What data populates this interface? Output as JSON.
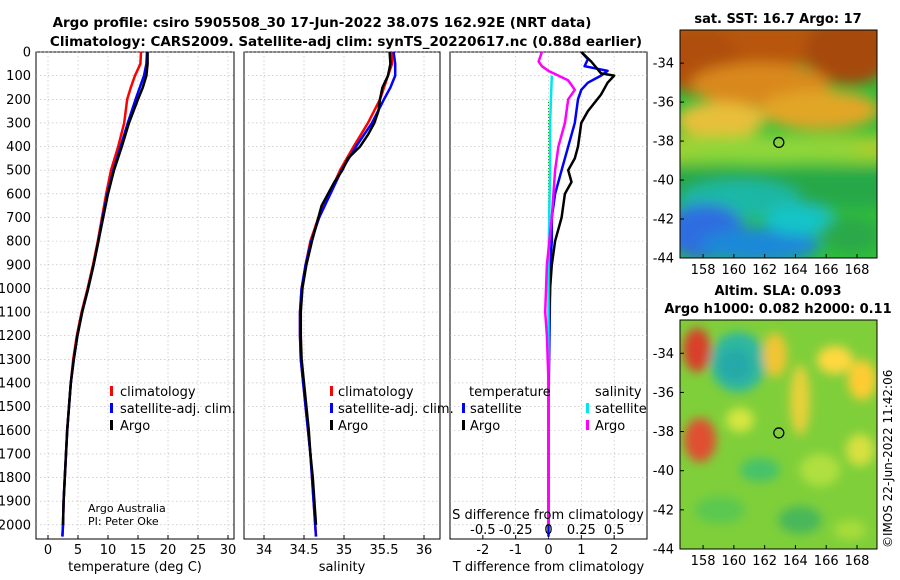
{
  "header": {
    "title_line1": "Argo profile: csiro 5905508_30 17-Jun-2022 38.07S 162.92E (NRT data)",
    "title_line2": "Climatology: CARS2009. Satellite-adj clim: synTS_20220617.nc (0.88d earlier)"
  },
  "credits": {
    "line1": "Argo Australia",
    "line2": "PI: Peter Oke"
  },
  "stamp": "©IMOS 22-Jun-2022 11:42:06",
  "colors": {
    "climatology": "#ff0000",
    "satellite": "#0000ff",
    "argo": "#000000",
    "sal_satellite": "#00e5ee",
    "sal_argo": "#ff00ff"
  },
  "chart_data": [
    {
      "id": "temperature",
      "type": "line",
      "xlabel": "temperature (deg C)",
      "ylabel": "",
      "xlim": [
        -2,
        31
      ],
      "ylim": [
        2060,
        0
      ],
      "xticks": [
        0,
        5,
        10,
        15,
        20,
        25,
        30
      ],
      "yticks": [
        0,
        100,
        200,
        300,
        400,
        500,
        600,
        700,
        800,
        900,
        1000,
        1100,
        1200,
        1300,
        1400,
        1500,
        1600,
        1700,
        1800,
        1900,
        2000
      ],
      "legend": [
        "climatology",
        "satellite-adj. clim.",
        "Argo"
      ],
      "series": [
        {
          "name": "climatology",
          "color": "#ff0000",
          "points": [
            [
              15.5,
              0
            ],
            [
              15.4,
              50
            ],
            [
              14.5,
              100
            ],
            [
              13.8,
              150
            ],
            [
              13.2,
              200
            ],
            [
              12.7,
              300
            ],
            [
              11.7,
              400
            ],
            [
              10.5,
              500
            ],
            [
              9.7,
              600
            ],
            [
              9.0,
              700
            ],
            [
              8.3,
              800
            ],
            [
              7.5,
              900
            ],
            [
              6.6,
              1000
            ],
            [
              5.6,
              1100
            ],
            [
              4.8,
              1200
            ],
            [
              4.2,
              1300
            ],
            [
              3.8,
              1400
            ],
            [
              3.5,
              1500
            ],
            [
              3.2,
              1600
            ],
            [
              3.0,
              1700
            ],
            [
              2.8,
              1800
            ],
            [
              2.6,
              1900
            ],
            [
              2.5,
              2000
            ],
            [
              2.4,
              2050
            ]
          ]
        },
        {
          "name": "satellite-adj. clim.",
          "color": "#0000ff",
          "points": [
            [
              16.5,
              0
            ],
            [
              16.4,
              50
            ],
            [
              16.0,
              100
            ],
            [
              15.3,
              150
            ],
            [
              14.6,
              200
            ],
            [
              13.3,
              300
            ],
            [
              12.1,
              400
            ],
            [
              10.9,
              500
            ],
            [
              9.9,
              600
            ],
            [
              9.1,
              700
            ],
            [
              8.4,
              800
            ],
            [
              7.6,
              900
            ],
            [
              6.7,
              1000
            ],
            [
              5.7,
              1100
            ],
            [
              4.9,
              1200
            ],
            [
              4.3,
              1300
            ],
            [
              3.8,
              1400
            ],
            [
              3.5,
              1500
            ],
            [
              3.2,
              1600
            ],
            [
              3.0,
              1700
            ],
            [
              2.8,
              1800
            ],
            [
              2.6,
              1900
            ],
            [
              2.5,
              2000
            ],
            [
              2.4,
              2050
            ]
          ]
        },
        {
          "name": "Argo",
          "color": "#000000",
          "points": [
            [
              16.6,
              0
            ],
            [
              16.6,
              50
            ],
            [
              16.4,
              100
            ],
            [
              15.8,
              150
            ],
            [
              15.0,
              200
            ],
            [
              13.5,
              300
            ],
            [
              12.3,
              400
            ],
            [
              11.0,
              500
            ],
            [
              10.0,
              600
            ],
            [
              9.2,
              700
            ],
            [
              8.4,
              800
            ],
            [
              7.6,
              900
            ],
            [
              6.7,
              1000
            ],
            [
              5.7,
              1100
            ],
            [
              4.9,
              1200
            ],
            [
              4.3,
              1300
            ],
            [
              3.8,
              1400
            ],
            [
              3.5,
              1500
            ],
            [
              3.2,
              1600
            ],
            [
              3.0,
              1700
            ],
            [
              2.8,
              1800
            ],
            [
              2.6,
              1900
            ],
            [
              2.5,
              2000
            ]
          ]
        }
      ]
    },
    {
      "id": "salinity",
      "type": "line",
      "xlabel": "salinity",
      "ylabel": "",
      "xlim": [
        33.75,
        36.2
      ],
      "ylim": [
        2060,
        0
      ],
      "xticks": [
        34,
        34.5,
        35,
        35.5,
        36
      ],
      "legend": [
        "climatology",
        "satellite-adj. clim.",
        "Argo"
      ],
      "series": [
        {
          "name": "climatology",
          "color": "#ff0000",
          "points": [
            [
              35.6,
              0
            ],
            [
              35.6,
              50
            ],
            [
              35.55,
              100
            ],
            [
              35.5,
              150
            ],
            [
              35.45,
              200
            ],
            [
              35.3,
              300
            ],
            [
              35.12,
              400
            ],
            [
              34.95,
              500
            ],
            [
              34.82,
              600
            ],
            [
              34.68,
              700
            ],
            [
              34.58,
              800
            ],
            [
              34.52,
              900
            ],
            [
              34.47,
              1000
            ],
            [
              34.45,
              1100
            ],
            [
              34.45,
              1200
            ],
            [
              34.46,
              1300
            ],
            [
              34.49,
              1400
            ],
            [
              34.52,
              1500
            ],
            [
              34.55,
              1600
            ],
            [
              34.58,
              1700
            ],
            [
              34.6,
              1800
            ],
            [
              34.62,
              1900
            ],
            [
              34.64,
              2000
            ],
            [
              34.65,
              2050
            ]
          ]
        },
        {
          "name": "satellite-adj. clim.",
          "color": "#0000ff",
          "points": [
            [
              35.62,
              0
            ],
            [
              35.64,
              50
            ],
            [
              35.64,
              100
            ],
            [
              35.58,
              150
            ],
            [
              35.5,
              200
            ],
            [
              35.35,
              300
            ],
            [
              35.15,
              400
            ],
            [
              34.97,
              500
            ],
            [
              34.83,
              600
            ],
            [
              34.69,
              700
            ],
            [
              34.59,
              800
            ],
            [
              34.52,
              900
            ],
            [
              34.47,
              1000
            ],
            [
              34.45,
              1100
            ],
            [
              34.45,
              1200
            ],
            [
              34.46,
              1300
            ],
            [
              34.49,
              1400
            ],
            [
              34.52,
              1500
            ],
            [
              34.55,
              1600
            ],
            [
              34.58,
              1700
            ],
            [
              34.6,
              1800
            ],
            [
              34.62,
              1900
            ],
            [
              34.64,
              2000
            ],
            [
              34.65,
              2050
            ]
          ]
        },
        {
          "name": "Argo",
          "color": "#000000",
          "points": [
            [
              35.57,
              0
            ],
            [
              35.58,
              50
            ],
            [
              35.55,
              100
            ],
            [
              35.48,
              150
            ],
            [
              35.45,
              200
            ],
            [
              35.43,
              250
            ],
            [
              35.38,
              300
            ],
            [
              35.3,
              350
            ],
            [
              35.2,
              400
            ],
            [
              35.05,
              450
            ],
            [
              34.98,
              500
            ],
            [
              34.88,
              550
            ],
            [
              34.8,
              600
            ],
            [
              34.72,
              650
            ],
            [
              34.68,
              700
            ],
            [
              34.6,
              800
            ],
            [
              34.53,
              900
            ],
            [
              34.48,
              1000
            ],
            [
              34.46,
              1100
            ],
            [
              34.46,
              1200
            ],
            [
              34.47,
              1300
            ],
            [
              34.5,
              1400
            ],
            [
              34.53,
              1500
            ],
            [
              34.56,
              1600
            ],
            [
              34.58,
              1700
            ],
            [
              34.61,
              1800
            ],
            [
              34.63,
              1900
            ],
            [
              34.65,
              2000
            ]
          ]
        }
      ]
    },
    {
      "id": "difference",
      "type": "line",
      "xlabel": "T difference from climatology",
      "xlabel_top": "S difference from climatology",
      "xlim": [
        -3,
        3
      ],
      "ylim": [
        2060,
        0
      ],
      "xticks": [
        -2,
        -1,
        0,
        1,
        2
      ],
      "xtick_labels": [
        "-2",
        "-1",
        "0",
        "1",
        "2"
      ],
      "sticks": [
        -0.5,
        -0.25,
        0,
        0.25,
        0.5
      ],
      "stick_labels": [
        "-0.5",
        "-0.25",
        "0",
        "0.25",
        "0.5"
      ],
      "legend_left_title": "temperature",
      "legend_right_title": "salinity",
      "legend_left": [
        "satellite",
        "Argo"
      ],
      "legend_right": [
        "satellite",
        "Argo"
      ],
      "series": [
        {
          "name": "T satellite",
          "color": "#0000ff",
          "points": [
            [
              1.0,
              0
            ],
            [
              1.2,
              30
            ],
            [
              1.1,
              60
            ],
            [
              1.8,
              80
            ],
            [
              1.6,
              100
            ],
            [
              1.2,
              130
            ],
            [
              1.0,
              160
            ],
            [
              0.9,
              200
            ],
            [
              0.8,
              300
            ],
            [
              0.6,
              400
            ],
            [
              0.4,
              500
            ],
            [
              0.2,
              600
            ],
            [
              0.1,
              700
            ],
            [
              0.1,
              800
            ],
            [
              0.05,
              900
            ],
            [
              0.05,
              1000
            ],
            [
              0,
              1500
            ],
            [
              0,
              2000
            ],
            [
              0,
              2050
            ]
          ]
        },
        {
          "name": "T Argo",
          "color": "#000000",
          "points": [
            [
              1.0,
              0
            ],
            [
              1.3,
              40
            ],
            [
              1.6,
              90
            ],
            [
              2.0,
              100
            ],
            [
              1.8,
              130
            ],
            [
              1.6,
              180
            ],
            [
              1.2,
              250
            ],
            [
              1.0,
              300
            ],
            [
              0.9,
              400
            ],
            [
              0.8,
              450
            ],
            [
              0.6,
              500
            ],
            [
              0.7,
              550
            ],
            [
              0.5,
              600
            ],
            [
              0.4,
              700
            ],
            [
              0.2,
              800
            ],
            [
              0.1,
              900
            ],
            [
              0.05,
              1000
            ],
            [
              0,
              1200
            ],
            [
              0,
              1500
            ],
            [
              0,
              2000
            ]
          ]
        },
        {
          "name": "S satellite",
          "color": "#00e5ee",
          "points": [
            [
              0.1,
              100
            ],
            [
              0.05,
              300
            ],
            [
              0.05,
              500
            ],
            [
              0.02,
              700
            ],
            [
              0,
              900
            ],
            [
              0,
              1400
            ],
            [
              0,
              2000
            ]
          ]
        },
        {
          "name": "S Argo",
          "color": "#ff00ff",
          "points": [
            [
              -0.2,
              0
            ],
            [
              -0.3,
              40
            ],
            [
              -0.2,
              60
            ],
            [
              0,
              80
            ],
            [
              0.3,
              100
            ],
            [
              0.6,
              120
            ],
            [
              0.8,
              160
            ],
            [
              0.6,
              200
            ],
            [
              0.5,
              300
            ],
            [
              0.3,
              400
            ],
            [
              0.2,
              500
            ],
            [
              0.1,
              700
            ],
            [
              -0.05,
              900
            ],
            [
              -0.1,
              1100
            ],
            [
              -0.05,
              1200
            ],
            [
              0,
              1400
            ],
            [
              0,
              2000
            ]
          ]
        }
      ]
    },
    {
      "id": "map_sst",
      "type": "heatmap",
      "title": "sat. SST: 16.7 Argo: 17",
      "xlim": [
        156.5,
        169.3
      ],
      "ylim": [
        -44,
        -32.3
      ],
      "xticks": [
        158,
        160,
        162,
        164,
        166,
        168
      ],
      "yticks": [
        -34,
        -36,
        -38,
        -40,
        -42,
        -44
      ],
      "marker": [
        162.92,
        -38.07
      ]
    },
    {
      "id": "map_sla",
      "type": "heatmap",
      "title_line1": "Altim. SLA: 0.093",
      "title_line2": "Argo h1000: 0.082 h2000: 0.11",
      "xlim": [
        156.5,
        169.3
      ],
      "ylim": [
        -44,
        -32.3
      ],
      "xticks": [
        158,
        160,
        162,
        164,
        166,
        168
      ],
      "yticks": [
        -34,
        -36,
        -38,
        -40,
        -42,
        -44
      ],
      "marker": [
        162.92,
        -38.07
      ]
    }
  ]
}
